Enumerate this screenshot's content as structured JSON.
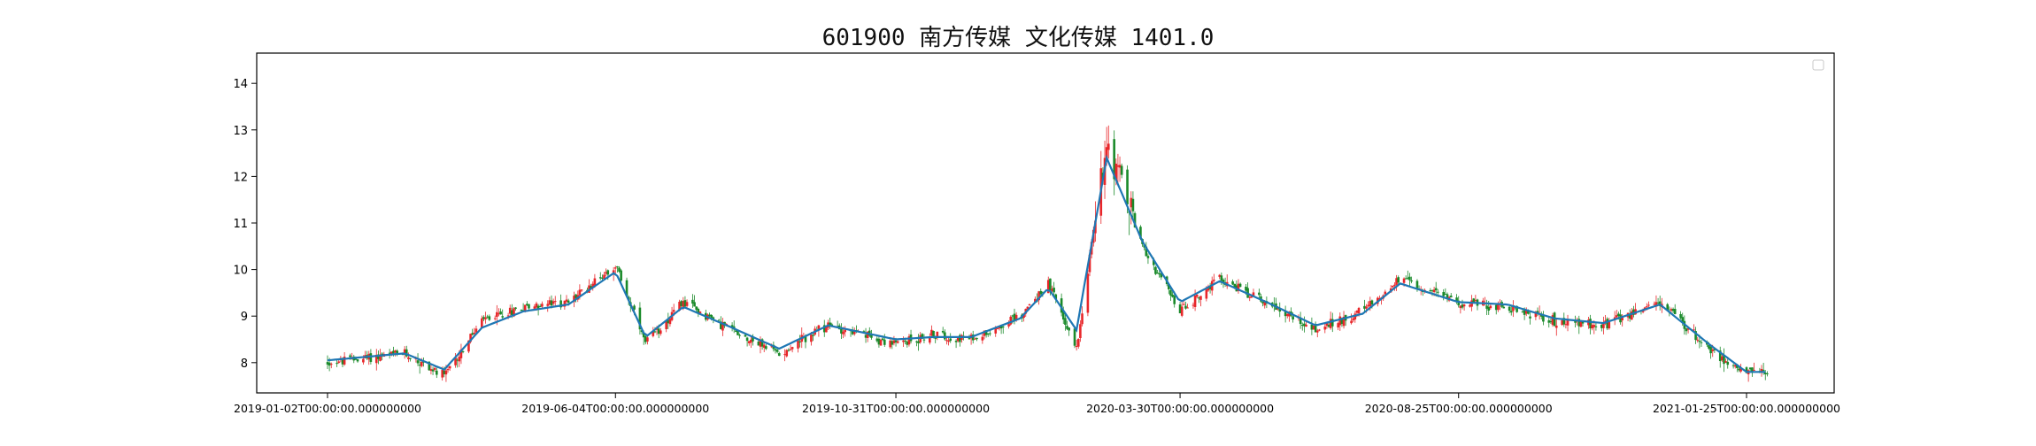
{
  "chart_data": {
    "type": "candlestick",
    "title": "601900 南方传媒 文化传媒 1401.0",
    "xlabel": "",
    "ylabel": "",
    "x_tick_labels": [
      "2019-01-02T00:00:00.000000000",
      "2019-06-04T00:00:00.000000000",
      "2019-10-31T00:00:00.000000000",
      "2020-03-30T00:00:00.000000000",
      "2020-08-25T00:00:00.000000000",
      "2021-01-25T00:00:00.000000000"
    ],
    "y_ticks": [
      8,
      9,
      10,
      11,
      12,
      13,
      14
    ],
    "ylim": [
      7.35,
      14.65
    ],
    "grid": false,
    "legend_placement": "top-right",
    "colors": {
      "up": "#e8262a",
      "down": "#1a8a2a",
      "line": "#1f77b4"
    },
    "series": [
      {
        "kind": "close_estimate",
        "x": [
          "2019-01-02",
          "2019-02-12",
          "2019-03-05",
          "2019-03-25",
          "2019-04-16",
          "2019-05-10",
          "2019-06-04",
          "2019-06-20",
          "2019-07-10",
          "2019-08-05",
          "2019-08-30",
          "2019-09-25",
          "2019-10-31",
          "2019-11-20",
          "2019-12-10",
          "2020-01-05",
          "2020-01-20",
          "2020-02-04",
          "2020-02-20",
          "2020-03-10",
          "2020-03-30",
          "2020-04-20",
          "2020-05-15",
          "2020-06-10",
          "2020-07-05",
          "2020-07-25",
          "2020-08-25",
          "2020-09-20",
          "2020-10-15",
          "2020-11-10",
          "2020-12-10",
          "2021-01-05",
          "2021-01-25",
          "2021-02-05"
        ],
        "y": [
          8.0,
          8.2,
          7.7,
          8.9,
          9.2,
          9.3,
          10.1,
          8.4,
          9.3,
          8.7,
          8.2,
          8.8,
          8.4,
          8.6,
          8.5,
          9.0,
          9.7,
          8.3,
          12.8,
          10.5,
          9.1,
          9.8,
          9.3,
          8.7,
          9.1,
          9.8,
          9.3,
          9.2,
          8.9,
          8.8,
          9.3,
          8.3,
          7.75,
          7.8
        ]
      },
      {
        "kind": "moving_average",
        "x": [
          "2019-01-02",
          "2019-02-12",
          "2019-03-05",
          "2019-03-25",
          "2019-04-16",
          "2019-05-10",
          "2019-06-04",
          "2019-06-20",
          "2019-07-10",
          "2019-08-05",
          "2019-08-30",
          "2019-09-25",
          "2019-10-31",
          "2019-11-20",
          "2019-12-10",
          "2020-01-05",
          "2020-01-20",
          "2020-02-04",
          "2020-02-20",
          "2020-03-10",
          "2020-03-30",
          "2020-04-20",
          "2020-05-15",
          "2020-06-10",
          "2020-07-05",
          "2020-07-25",
          "2020-08-25",
          "2020-09-20",
          "2020-10-15",
          "2020-11-10",
          "2020-12-10",
          "2021-01-05",
          "2021-01-25",
          "2021-02-05"
        ],
        "y": [
          8.05,
          8.2,
          7.85,
          8.75,
          9.1,
          9.25,
          9.95,
          8.55,
          9.2,
          8.75,
          8.3,
          8.8,
          8.5,
          8.55,
          8.55,
          8.95,
          9.6,
          8.7,
          12.4,
          10.6,
          9.3,
          9.75,
          9.3,
          8.8,
          9.05,
          9.7,
          9.3,
          9.25,
          8.95,
          8.85,
          9.25,
          8.4,
          7.8,
          7.8
        ]
      }
    ]
  }
}
